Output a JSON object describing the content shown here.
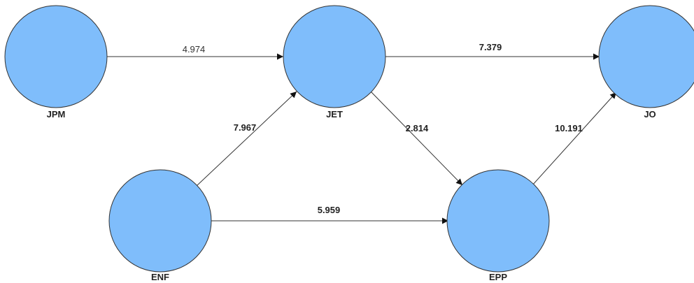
{
  "diagram": {
    "node_fill": "#7fbdfb",
    "stroke": "#333333",
    "nodes": {
      "jpm": {
        "label": "JPM"
      },
      "jet": {
        "label": "JET"
      },
      "jo": {
        "label": "JO"
      },
      "enf": {
        "label": "ENF"
      },
      "epp": {
        "label": "EPP"
      }
    },
    "edges": {
      "jpm_jet": {
        "from": "JPM",
        "to": "JET",
        "weight": "4.974"
      },
      "jet_jo": {
        "from": "JET",
        "to": "JO",
        "weight": "7.379"
      },
      "enf_jet": {
        "from": "ENF",
        "to": "JET",
        "weight": "7.967"
      },
      "jet_epp": {
        "from": "JET",
        "to": "EPP",
        "weight": "2.814"
      },
      "epp_jo": {
        "from": "EPP",
        "to": "JO",
        "weight": "10.191"
      },
      "enf_epp": {
        "from": "ENF",
        "to": "EPP",
        "weight": "5.959"
      }
    }
  }
}
